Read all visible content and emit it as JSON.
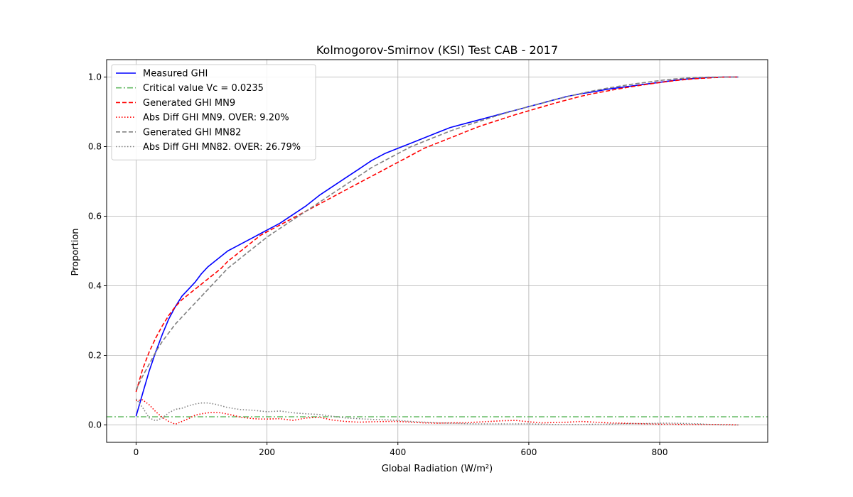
{
  "chart_data": {
    "type": "line",
    "title": "Kolmogorov-Smirnov (KSI) Test CAB - 2017",
    "xlabel": "Global Radiation (W/m²)",
    "ylabel": "Proportion",
    "xlim": [
      -45,
      965
    ],
    "ylim": [
      -0.05,
      1.05
    ],
    "xticks": [
      0,
      200,
      400,
      600,
      800
    ],
    "yticks": [
      0.0,
      0.2,
      0.4,
      0.6,
      0.8,
      1.0
    ],
    "xtick_labels": [
      "0",
      "200",
      "400",
      "600",
      "800"
    ],
    "ytick_labels": [
      "0.0",
      "0.2",
      "0.4",
      "0.6",
      "0.8",
      "1.0"
    ],
    "grid": true,
    "legend_position": "top-left",
    "series": [
      {
        "name": "Measured GHI",
        "color": "#0000ff",
        "style": "solid",
        "x": [
          0,
          10,
          20,
          30,
          40,
          50,
          60,
          70,
          80,
          90,
          100,
          110,
          120,
          130,
          140,
          150,
          160,
          170,
          180,
          190,
          200,
          220,
          240,
          260,
          280,
          300,
          320,
          340,
          360,
          380,
          400,
          420,
          440,
          460,
          480,
          500,
          520,
          540,
          560,
          580,
          600,
          620,
          640,
          660,
          680,
          700,
          720,
          740,
          760,
          780,
          800,
          820,
          840,
          860,
          880,
          900,
          920
        ],
        "y": [
          0.025,
          0.09,
          0.155,
          0.21,
          0.26,
          0.305,
          0.34,
          0.37,
          0.39,
          0.41,
          0.435,
          0.455,
          0.47,
          0.485,
          0.5,
          0.51,
          0.52,
          0.53,
          0.54,
          0.55,
          0.56,
          0.58,
          0.605,
          0.63,
          0.66,
          0.685,
          0.71,
          0.735,
          0.76,
          0.78,
          0.795,
          0.81,
          0.825,
          0.84,
          0.855,
          0.865,
          0.875,
          0.885,
          0.895,
          0.905,
          0.915,
          0.925,
          0.935,
          0.945,
          0.952,
          0.958,
          0.965,
          0.97,
          0.975,
          0.98,
          0.985,
          0.99,
          0.994,
          0.997,
          0.999,
          1.0,
          1.0
        ]
      },
      {
        "name": "Critical value Vc = 0.0235",
        "color": "#66bb66",
        "style": "dashdot",
        "x": [
          -45,
          965
        ],
        "y": [
          0.0235,
          0.0235
        ]
      },
      {
        "name": "Generated GHI MN9",
        "color": "#ff0000",
        "style": "dashed",
        "x": [
          0,
          10,
          20,
          30,
          40,
          50,
          60,
          70,
          80,
          90,
          100,
          110,
          120,
          130,
          140,
          150,
          160,
          170,
          180,
          190,
          200,
          220,
          240,
          260,
          280,
          300,
          320,
          340,
          360,
          380,
          400,
          420,
          440,
          460,
          480,
          500,
          520,
          540,
          560,
          580,
          600,
          620,
          640,
          660,
          680,
          700,
          720,
          740,
          760,
          780,
          800,
          820,
          840,
          860,
          880,
          900,
          920
        ],
        "y": [
          0.095,
          0.16,
          0.21,
          0.25,
          0.285,
          0.315,
          0.34,
          0.36,
          0.375,
          0.39,
          0.405,
          0.42,
          0.435,
          0.45,
          0.47,
          0.485,
          0.5,
          0.515,
          0.53,
          0.545,
          0.555,
          0.575,
          0.595,
          0.615,
          0.635,
          0.655,
          0.675,
          0.695,
          0.715,
          0.735,
          0.755,
          0.775,
          0.795,
          0.81,
          0.825,
          0.84,
          0.855,
          0.868,
          0.88,
          0.892,
          0.903,
          0.914,
          0.925,
          0.935,
          0.945,
          0.953,
          0.96,
          0.967,
          0.973,
          0.979,
          0.984,
          0.989,
          0.993,
          0.996,
          0.998,
          1.0,
          1.0
        ]
      },
      {
        "name": "Abs Diff GHI MN9. OVER: 9.20%",
        "color": "#ff0000",
        "style": "dotted",
        "x": [
          0,
          10,
          20,
          30,
          40,
          50,
          60,
          70,
          80,
          90,
          100,
          110,
          120,
          130,
          140,
          150,
          160,
          170,
          180,
          190,
          200,
          220,
          240,
          260,
          280,
          300,
          320,
          340,
          360,
          380,
          400,
          420,
          440,
          460,
          480,
          500,
          520,
          540,
          560,
          580,
          600,
          620,
          640,
          660,
          680,
          700,
          720,
          740,
          760,
          780,
          800,
          820,
          840,
          860,
          880,
          900,
          920
        ],
        "y": [
          0.07,
          0.072,
          0.058,
          0.038,
          0.022,
          0.01,
          0.002,
          0.01,
          0.018,
          0.028,
          0.032,
          0.035,
          0.036,
          0.035,
          0.031,
          0.027,
          0.022,
          0.02,
          0.018,
          0.017,
          0.017,
          0.018,
          0.013,
          0.02,
          0.022,
          0.014,
          0.01,
          0.008,
          0.009,
          0.01,
          0.01,
          0.008,
          0.006,
          0.005,
          0.006,
          0.006,
          0.008,
          0.01,
          0.012,
          0.013,
          0.009,
          0.006,
          0.007,
          0.008,
          0.01,
          0.008,
          0.006,
          0.005,
          0.004,
          0.003,
          0.002,
          0.002,
          0.001,
          0.001,
          0.001,
          0.001,
          0.0
        ]
      },
      {
        "name": "Generated GHI MN82",
        "color": "#808080",
        "style": "dashed",
        "x": [
          0,
          10,
          20,
          30,
          40,
          50,
          60,
          70,
          80,
          90,
          100,
          110,
          120,
          130,
          140,
          150,
          160,
          170,
          180,
          190,
          200,
          220,
          240,
          260,
          280,
          300,
          320,
          340,
          360,
          380,
          400,
          420,
          440,
          460,
          480,
          500,
          520,
          540,
          560,
          580,
          600,
          620,
          640,
          660,
          680,
          700,
          720,
          740,
          760,
          780,
          800,
          820,
          840,
          860,
          880,
          900,
          920
        ],
        "y": [
          0.1,
          0.14,
          0.175,
          0.21,
          0.24,
          0.265,
          0.29,
          0.31,
          0.33,
          0.35,
          0.37,
          0.39,
          0.41,
          0.43,
          0.45,
          0.465,
          0.48,
          0.495,
          0.51,
          0.525,
          0.54,
          0.565,
          0.59,
          0.615,
          0.64,
          0.665,
          0.69,
          0.715,
          0.74,
          0.76,
          0.78,
          0.8,
          0.815,
          0.83,
          0.845,
          0.858,
          0.87,
          0.882,
          0.894,
          0.905,
          0.915,
          0.925,
          0.935,
          0.944,
          0.953,
          0.961,
          0.968,
          0.974,
          0.98,
          0.985,
          0.99,
          0.994,
          0.997,
          0.999,
          1.0,
          1.0,
          1.0
        ]
      },
      {
        "name": "Abs Diff GHI MN82. OVER: 26.79%",
        "color": "#808080",
        "style": "dotted",
        "x": [
          0,
          10,
          20,
          30,
          40,
          50,
          60,
          70,
          80,
          90,
          100,
          110,
          120,
          130,
          140,
          150,
          160,
          170,
          180,
          190,
          200,
          220,
          240,
          260,
          280,
          300,
          320,
          340,
          360,
          380,
          400,
          420,
          440,
          460,
          480,
          500,
          520,
          540,
          560,
          580,
          600,
          620,
          640,
          660,
          680,
          700,
          720,
          740,
          760,
          780,
          800,
          820,
          840,
          860,
          880,
          900,
          920
        ],
        "y": [
          0.075,
          0.05,
          0.02,
          0.012,
          0.02,
          0.035,
          0.045,
          0.048,
          0.055,
          0.06,
          0.063,
          0.063,
          0.06,
          0.055,
          0.05,
          0.047,
          0.044,
          0.043,
          0.042,
          0.04,
          0.038,
          0.04,
          0.035,
          0.032,
          0.03,
          0.025,
          0.02,
          0.018,
          0.016,
          0.015,
          0.013,
          0.01,
          0.008,
          0.006,
          0.005,
          0.004,
          0.003,
          0.003,
          0.003,
          0.003,
          0.003,
          0.002,
          0.001,
          0.001,
          0.001,
          0.002,
          0.002,
          0.003,
          0.004,
          0.004,
          0.005,
          0.005,
          0.004,
          0.003,
          0.001,
          0.0,
          0.0
        ]
      }
    ]
  }
}
